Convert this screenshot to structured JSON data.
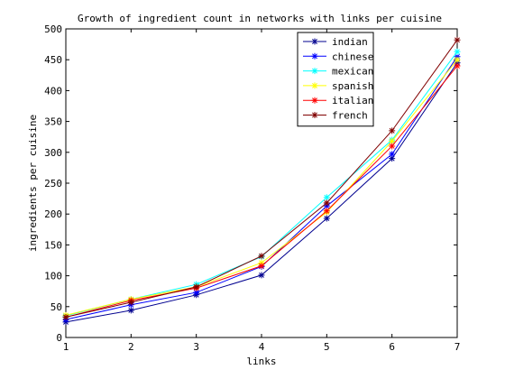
{
  "chart_data": {
    "type": "line",
    "title": "Growth of ingredient count in networks with links per cuisine",
    "xlabel": "links",
    "ylabel": "ingredients per cuisine",
    "x": [
      1,
      2,
      3,
      4,
      5,
      6,
      7
    ],
    "xlim": [
      1,
      7
    ],
    "ylim": [
      0,
      500
    ],
    "xticks": [
      "1",
      "2",
      "3",
      "4",
      "5",
      "6",
      "7"
    ],
    "yticks": [
      "0",
      "50",
      "100",
      "150",
      "200",
      "250",
      "300",
      "350",
      "400",
      "450",
      "500"
    ],
    "grid": false,
    "legend_position": "top-right",
    "marker": "star",
    "series": [
      {
        "name": "indian",
        "color": "#00008F",
        "values": [
          25,
          44,
          69,
          101,
          193,
          290,
          445
        ]
      },
      {
        "name": "chinese",
        "color": "#0000FF",
        "values": [
          29,
          53,
          73,
          115,
          213,
          297,
          455
        ]
      },
      {
        "name": "mexican",
        "color": "#00FFFF",
        "values": [
          35,
          62,
          86,
          131,
          227,
          320,
          463
        ]
      },
      {
        "name": "spanish",
        "color": "#FFFF00",
        "values": [
          36,
          62,
          82,
          121,
          203,
          318,
          450
        ]
      },
      {
        "name": "italian",
        "color": "#FF0000",
        "values": [
          33,
          60,
          80,
          116,
          205,
          310,
          440
        ]
      },
      {
        "name": "french",
        "color": "#800000",
        "values": [
          33,
          57,
          82,
          132,
          218,
          335,
          482
        ]
      }
    ]
  }
}
